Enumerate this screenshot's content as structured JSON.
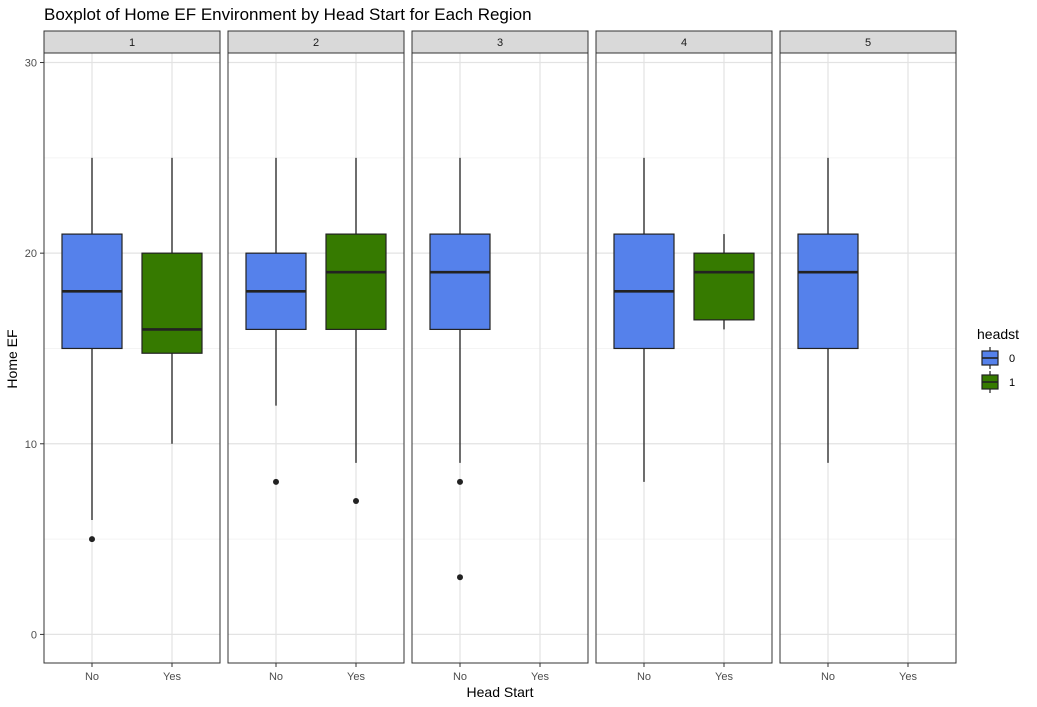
{
  "chart_data": {
    "type": "boxplot",
    "title": "Boxplot of Home EF Environment by Head Start for Each Region",
    "xlabel": "Head Start",
    "ylabel": "Home EF",
    "ylim": [
      -1.5,
      30.5
    ],
    "y_ticks": [
      0,
      10,
      20,
      30
    ],
    "x_categories": [
      "No",
      "Yes"
    ],
    "grid": true,
    "legend": {
      "title": "headst",
      "position": "right",
      "entries": [
        {
          "label": "0",
          "color": "#5581EB"
        },
        {
          "label": "1",
          "color": "#367A00"
        }
      ]
    },
    "panels": [
      {
        "label": "1",
        "boxes": [
          {
            "x": "No",
            "group": "0",
            "whisker_low": 6,
            "q1": 15,
            "median": 18,
            "q3": 21,
            "whisker_high": 25,
            "outliers": [
              5
            ]
          },
          {
            "x": "Yes",
            "group": "1",
            "whisker_low": 10,
            "q1": 14.75,
            "median": 16,
            "q3": 20,
            "whisker_high": 25,
            "outliers": []
          }
        ]
      },
      {
        "label": "2",
        "boxes": [
          {
            "x": "No",
            "group": "0",
            "whisker_low": 12,
            "q1": 16,
            "median": 18,
            "q3": 20,
            "whisker_high": 25,
            "outliers": [
              8
            ]
          },
          {
            "x": "Yes",
            "group": "1",
            "whisker_low": 9,
            "q1": 16,
            "median": 19,
            "q3": 21,
            "whisker_high": 25,
            "outliers": [
              7
            ]
          }
        ]
      },
      {
        "label": "3",
        "boxes": [
          {
            "x": "No",
            "group": "0",
            "whisker_low": 9,
            "q1": 16,
            "median": 19,
            "q3": 21,
            "whisker_high": 25,
            "outliers": [
              8,
              3
            ]
          }
        ]
      },
      {
        "label": "4",
        "boxes": [
          {
            "x": "No",
            "group": "0",
            "whisker_low": 8,
            "q1": 15,
            "median": 18,
            "q3": 21,
            "whisker_high": 25,
            "outliers": []
          },
          {
            "x": "Yes",
            "group": "1",
            "whisker_low": 16,
            "q1": 16.5,
            "median": 19,
            "q3": 20,
            "whisker_high": 21,
            "outliers": []
          }
        ]
      },
      {
        "label": "5",
        "boxes": [
          {
            "x": "No",
            "group": "0",
            "whisker_low": 9,
            "q1": 15,
            "median": 19,
            "q3": 21,
            "whisker_high": 25,
            "outliers": []
          }
        ]
      }
    ]
  }
}
